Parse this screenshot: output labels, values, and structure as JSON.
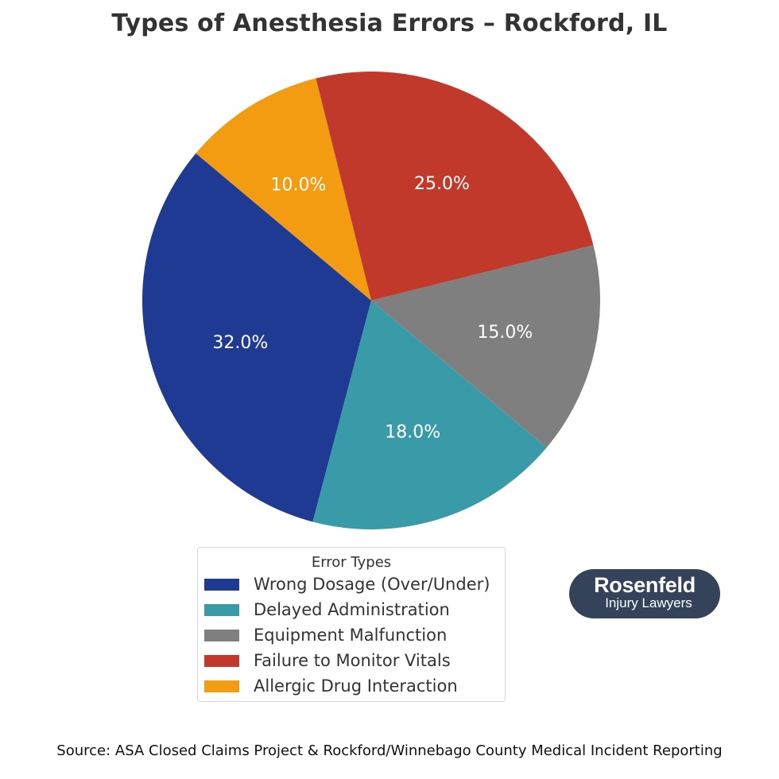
{
  "title": "Types of Anesthesia Errors – Rockford, IL",
  "source": "Source: ASA Closed Claims Project & Rockford/Winnebago County Medical Incident Reporting",
  "legend": {
    "title": "Error Types",
    "items": [
      {
        "label": "Wrong Dosage (Over/Under)",
        "color": "#1f3a93"
      },
      {
        "label": "Delayed Administration",
        "color": "#3a9ba8"
      },
      {
        "label": "Equipment Malfunction",
        "color": "#7f7f7f"
      },
      {
        "label": "Failure to Monitor Vitals",
        "color": "#c0392b"
      },
      {
        "label": "Allergic Drug Interaction",
        "color": "#f39c12"
      }
    ]
  },
  "logo": {
    "name": "Rosenfeld",
    "subtitle": "Injury Lawyers",
    "background": "#35435a"
  },
  "chart_data": {
    "type": "pie",
    "title": "Types of Anesthesia Errors – Rockford, IL",
    "categories": [
      "Wrong Dosage (Over/Under)",
      "Delayed Administration",
      "Equipment Malfunction",
      "Failure to Monitor Vitals",
      "Allergic Drug Interaction"
    ],
    "values": [
      32.0,
      18.0,
      15.0,
      25.0,
      10.0
    ],
    "labels": [
      "32.0%",
      "18.0%",
      "15.0%",
      "25.0%",
      "10.0%"
    ],
    "colors": [
      "#1f3a93",
      "#3a9ba8",
      "#7f7f7f",
      "#c0392b",
      "#f39c12"
    ],
    "start_angle": 140,
    "direction": "counterclockwise",
    "legend_title": "Error Types",
    "legend_position": "lower center"
  }
}
